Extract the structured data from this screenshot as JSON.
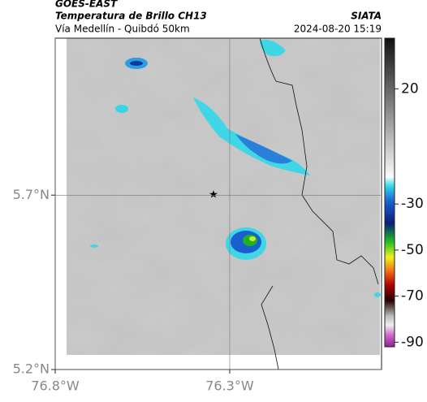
{
  "header": {
    "satellite": "GOES-EAST",
    "product": "Temperatura de Brillo CH13",
    "route": "Vía Medellín - Quibdó 50km",
    "source": "SIATA",
    "timestamp": "2024-08-20 15:19"
  },
  "map": {
    "latlim": [
      5.2,
      6.15
    ],
    "lonlim": [
      -76.8,
      -75.865
    ],
    "latticks": [
      {
        "value": 5.2,
        "label": "5.2°N"
      },
      {
        "value": 5.7,
        "label": "5.7°N"
      }
    ],
    "lonticks": [
      {
        "value": -76.8,
        "label": "76.8°W"
      },
      {
        "value": -76.3,
        "label": "76.3°W"
      }
    ]
  },
  "colorbar": {
    "lim": [
      -92,
      42
    ],
    "ticks": [
      20,
      -30,
      -50,
      -70,
      -90
    ]
  }
}
